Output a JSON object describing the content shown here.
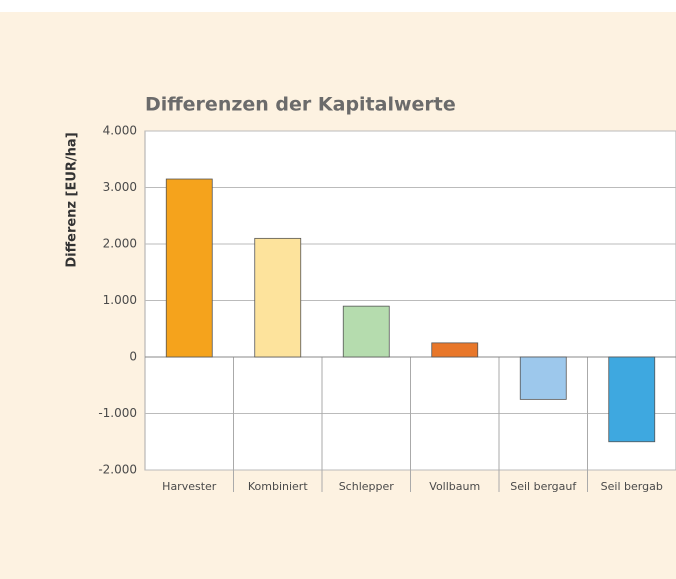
{
  "chart_data": {
    "type": "bar",
    "title": "Differenzen der Kapitalwerte",
    "y_label": "Differenz [EUR/ha]",
    "categories": [
      "Harvester",
      "Kombiniert",
      "Schlepper",
      "Vollbaum",
      "Seil bergauf",
      "Seil bergab"
    ],
    "values": [
      3150,
      2100,
      900,
      250,
      -750,
      -1500
    ],
    "colors": [
      "#f5a31c",
      "#fde39c",
      "#b5dcae",
      "#e8772a",
      "#9dc8ec",
      "#3ea8e0"
    ],
    "ylim": [
      -2000,
      4000
    ],
    "yticks": [
      {
        "value": -2000,
        "label": "-2.000"
      },
      {
        "value": -1000,
        "label": "-1.000"
      },
      0,
      {
        "value": 1000,
        "label": "1.000"
      },
      {
        "value": 2000,
        "label": "2.000"
      },
      {
        "value": 3000,
        "label": "3.000"
      },
      {
        "value": 4000,
        "label": "4.000"
      }
    ],
    "grid": true
  }
}
